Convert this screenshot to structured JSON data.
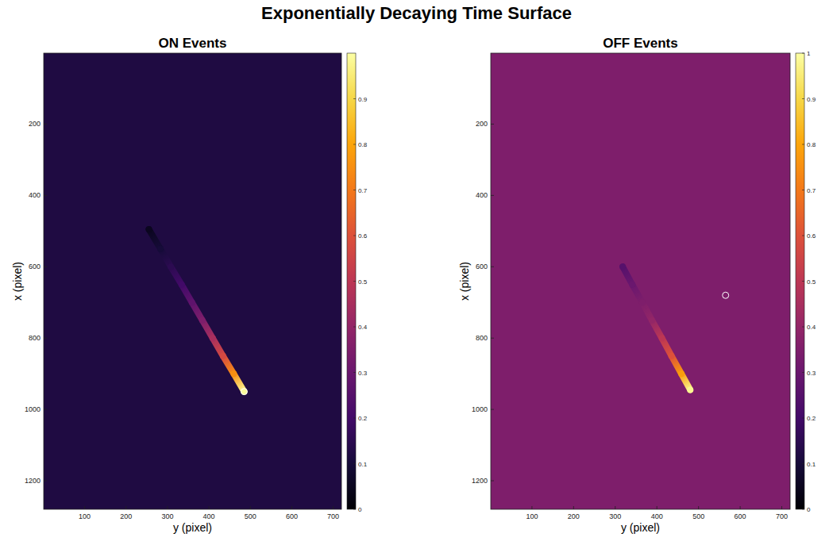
{
  "title": "Exponentially Decaying Time Surface",
  "chart_data": [
    {
      "type": "heatmap",
      "title": "ON Events",
      "x_label": "y (pixel)",
      "y_label": "x (pixel)",
      "xlim": [
        1,
        720
      ],
      "ylim": [
        1280,
        1
      ],
      "xticks": [
        100,
        200,
        300,
        400,
        500,
        600,
        700
      ],
      "yticks": [
        200,
        400,
        600,
        800,
        1000,
        1200
      ],
      "background_value": 0.12,
      "colorbar": {
        "range": [
          0,
          1
        ],
        "ticks": [
          0,
          0.1,
          0.2,
          0.3,
          0.4,
          0.5,
          0.6,
          0.7,
          0.8,
          0.9
        ]
      },
      "track": {
        "x": [
          255,
          283,
          308,
          334,
          359,
          384,
          409,
          434,
          460,
          485
        ],
        "y": [
          495,
          550,
          600,
          650,
          700,
          750,
          800,
          850,
          900,
          950
        ],
        "values": [
          0.05,
          0.1,
          0.15,
          0.2,
          0.27,
          0.35,
          0.45,
          0.57,
          0.75,
          0.99
        ]
      },
      "highlight": {
        "x": [
          485
        ],
        "y": [
          950
        ]
      }
    },
    {
      "type": "heatmap",
      "title": "OFF Events",
      "x_label": "y (pixel)",
      "y_label": "x (pixel)",
      "xlim": [
        1,
        720
      ],
      "ylim": [
        1280,
        1
      ],
      "xticks": [
        100,
        200,
        300,
        400,
        500,
        600,
        700
      ],
      "yticks": [
        200,
        400,
        600,
        800,
        1000,
        1200
      ],
      "background_value": 0.35,
      "colorbar": {
        "range": [
          0,
          1
        ],
        "ticks": [
          0,
          0.1,
          0.2,
          0.3,
          0.4,
          0.5,
          0.6,
          0.7,
          0.8,
          0.9,
          1
        ]
      },
      "track": {
        "x": [
          318,
          341,
          365,
          388,
          412,
          435,
          459,
          480
        ],
        "y": [
          600,
          650,
          700,
          750,
          800,
          850,
          900,
          945
        ],
        "values": [
          0.25,
          0.3,
          0.35,
          0.4,
          0.5,
          0.6,
          0.78,
          0.98
        ]
      },
      "highlight": {
        "x": [
          565
        ],
        "y": [
          680
        ]
      }
    }
  ]
}
